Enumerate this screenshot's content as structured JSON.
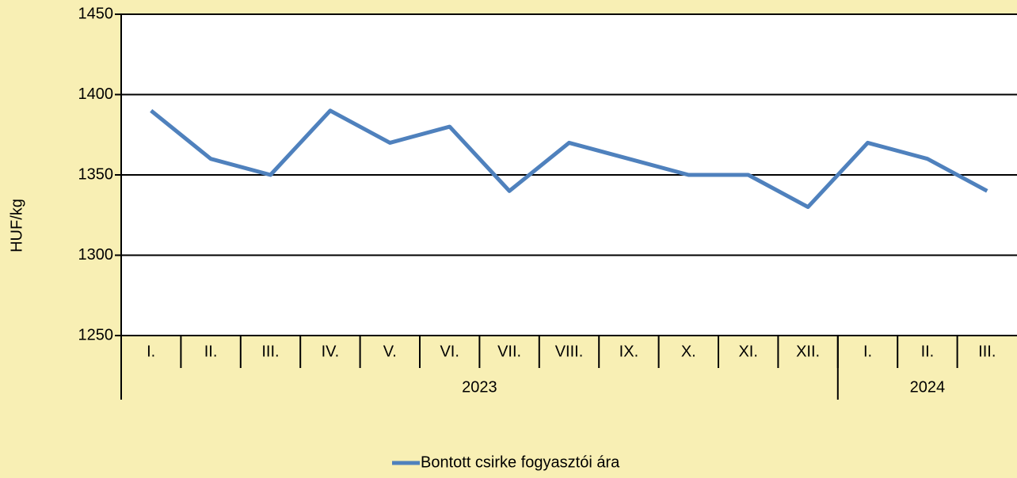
{
  "chart_data": {
    "type": "line",
    "y_label": "HUF/kg",
    "groups": [
      {
        "label": "2023",
        "categories": [
          "I.",
          "II.",
          "III.",
          "IV.",
          "V.",
          "VI.",
          "VII.",
          "VIII.",
          "IX.",
          "X.",
          "XI.",
          "XII."
        ]
      },
      {
        "label": "2024",
        "categories": [
          "I.",
          "II.",
          "III."
        ]
      }
    ],
    "series": [
      {
        "name": "Bontott csirke fogyasztói ára",
        "color": "#4f81bd",
        "values": [
          1390,
          1360,
          1350,
          1390,
          1370,
          1380,
          1340,
          1370,
          1360,
          1350,
          1350,
          1330,
          1370,
          1360,
          1340
        ]
      }
    ],
    "ylim": [
      1250,
      1450
    ],
    "yticks": [
      1250,
      1300,
      1350,
      1400,
      1450
    ],
    "grid": true,
    "legend": "bottom"
  }
}
